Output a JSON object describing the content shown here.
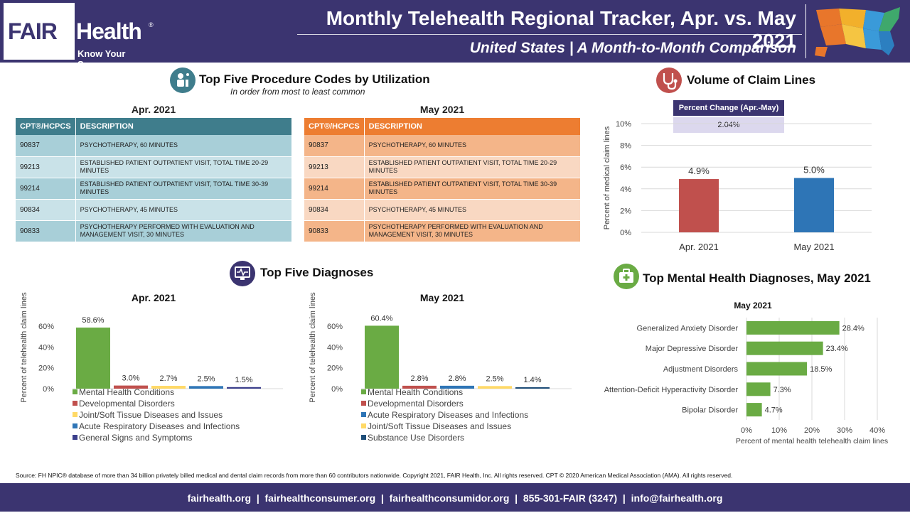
{
  "header": {
    "logo_fair": "FAIR",
    "logo_health": "Health",
    "logo_reg": "®",
    "logo_tagline": "Know Your Source",
    "title": "Monthly Telehealth Regional Tracker, Apr. vs. May 2021",
    "subtitle": "United States | A Month-to-Month Comparison",
    "map_icon": "us-map-icon"
  },
  "colors": {
    "brand": "#3b3470",
    "apr_header": "#3f7d8c",
    "apr_row_dark": "#a8cfd8",
    "apr_row_light": "#c9e2e8",
    "may_header": "#ed7d31",
    "may_row_dark": "#f4b589",
    "may_row_light": "#f9d8c2",
    "green": "#6aab44",
    "red": "#c0504d",
    "yellow": "#ffd966",
    "blue": "#2e75b6",
    "navy": "#3b3f8c"
  },
  "procedures": {
    "title": "Top Five Procedure Codes by Utilization",
    "subtitle": "In order from most to least common",
    "icon": "doctor-icon",
    "col_code": "CPT®/HCPCS",
    "col_desc": "DESCRIPTION",
    "apr": {
      "label": "Apr. 2021",
      "rows": [
        {
          "code": "90837",
          "desc": "PSYCHOTHERAPY, 60 MINUTES"
        },
        {
          "code": "99213",
          "desc": "ESTABLISHED PATIENT OUTPATIENT VISIT, TOTAL TIME 20-29 MINUTES"
        },
        {
          "code": "99214",
          "desc": "ESTABLISHED PATIENT OUTPATIENT VISIT, TOTAL TIME 30-39 MINUTES"
        },
        {
          "code": "90834",
          "desc": "PSYCHOTHERAPY, 45 MINUTES"
        },
        {
          "code": "90833",
          "desc": "PSYCHOTHERAPY PERFORMED WITH EVALUATION AND MANAGEMENT VISIT, 30 MINUTES"
        }
      ]
    },
    "may": {
      "label": "May 2021",
      "rows": [
        {
          "code": "90837",
          "desc": "PSYCHOTHERAPY, 60 MINUTES"
        },
        {
          "code": "99213",
          "desc": "ESTABLISHED PATIENT OUTPATIENT VISIT, TOTAL TIME 20-29 MINUTES"
        },
        {
          "code": "99214",
          "desc": "ESTABLISHED PATIENT OUTPATIENT VISIT, TOTAL TIME 30-39 MINUTES"
        },
        {
          "code": "90834",
          "desc": "PSYCHOTHERAPY, 45 MINUTES"
        },
        {
          "code": "90833",
          "desc": "PSYCHOTHERAPY PERFORMED WITH EVALUATION AND MANAGEMENT VISIT, 30 MINUTES"
        }
      ]
    }
  },
  "volume": {
    "title": "Volume of Claim Lines",
    "icon": "stethoscope-icon",
    "pct_change_label": "Percent Change (Apr.-May)",
    "pct_change_value": "2.04%"
  },
  "diagnoses": {
    "title": "Top Five Diagnoses",
    "icon": "monitor-heartbeat-icon"
  },
  "mental": {
    "title": "Top Mental Health Diagnoses, May 2021",
    "icon": "medical-kit-icon"
  },
  "chart_data": [
    {
      "id": "volume",
      "type": "bar",
      "categories": [
        "Apr. 2021",
        "May 2021"
      ],
      "values": [
        4.9,
        5.0
      ],
      "value_labels": [
        "4.9%",
        "5.0%"
      ],
      "colors": [
        "#c0504d",
        "#2e75b6"
      ],
      "ylabel": "Percent of medical claim lines",
      "ylim": [
        0,
        10
      ],
      "yticks": [
        "0%",
        "2%",
        "4%",
        "6%",
        "8%",
        "10%"
      ],
      "grid": true
    },
    {
      "id": "diag-apr",
      "type": "bar",
      "title": "Apr. 2021",
      "categories": [
        "Mental Health Conditions",
        "Developmental Disorders",
        "Joint/Soft Tissue Diseases and Issues",
        "Acute Respiratory Diseases and Infections",
        "General Signs and Symptoms"
      ],
      "values": [
        58.6,
        3.0,
        2.7,
        2.5,
        1.5
      ],
      "value_labels": [
        "58.6%",
        "3.0%",
        "2.7%",
        "2.5%",
        "1.5%"
      ],
      "colors": [
        "#6aab44",
        "#c0504d",
        "#ffd966",
        "#2e75b6",
        "#3b3f8c"
      ],
      "ylabel": "Percent of telehealth claim lines",
      "ylim": [
        0,
        60
      ],
      "yticks": [
        "0%",
        "20%",
        "40%",
        "60%"
      ],
      "legend": "bottom"
    },
    {
      "id": "diag-may",
      "type": "bar",
      "title": "May 2021",
      "categories": [
        "Mental Health Conditions",
        "Developmental Disorders",
        "Acute Respiratory Diseases and Infections",
        "Joint/Soft Tissue Diseases and Issues",
        "Substance Use Disorders"
      ],
      "values": [
        60.4,
        2.8,
        2.8,
        2.5,
        1.4
      ],
      "value_labels": [
        "60.4%",
        "2.8%",
        "2.8%",
        "2.5%",
        "1.4%"
      ],
      "colors": [
        "#6aab44",
        "#c0504d",
        "#2e75b6",
        "#ffd966",
        "#1f4e79"
      ],
      "ylabel": "Percent of telehealth claim lines",
      "ylim": [
        0,
        60
      ],
      "yticks": [
        "0%",
        "20%",
        "40%",
        "60%"
      ],
      "legend": "bottom"
    },
    {
      "id": "mental",
      "type": "bar",
      "orientation": "horizontal",
      "title": "May 2021",
      "categories": [
        "Generalized Anxiety Disorder",
        "Major Depressive Disorder",
        "Adjustment Disorders",
        "Attention-Deficit Hyperactivity Disorder",
        "Bipolar Disorder"
      ],
      "values": [
        28.4,
        23.4,
        18.5,
        7.3,
        4.7
      ],
      "value_labels": [
        "28.4%",
        "23.4%",
        "18.5%",
        "7.3%",
        "4.7%"
      ],
      "colors": [
        "#6aab44"
      ],
      "xlabel": "Percent of mental health telehealth claim lines",
      "xlim": [
        0,
        40
      ],
      "xticks": [
        "0%",
        "10%",
        "20%",
        "30%",
        "40%"
      ],
      "grid": true
    }
  ],
  "footer": {
    "source": "Source: FH NPIC® database of more than 34 billion privately billed medical and dental claim records from more than 60 contributors nationwide. Copyright 2021, FAIR Health, Inc. All rights reserved. CPT © 2020 American Medical Association (AMA). All rights reserved.",
    "links": "fairhealth.org  |  fairhealthconsumer.org  |  fairhealthconsumidor.org  |  855-301-FAIR (3247)  |  info@fairhealth.org"
  }
}
